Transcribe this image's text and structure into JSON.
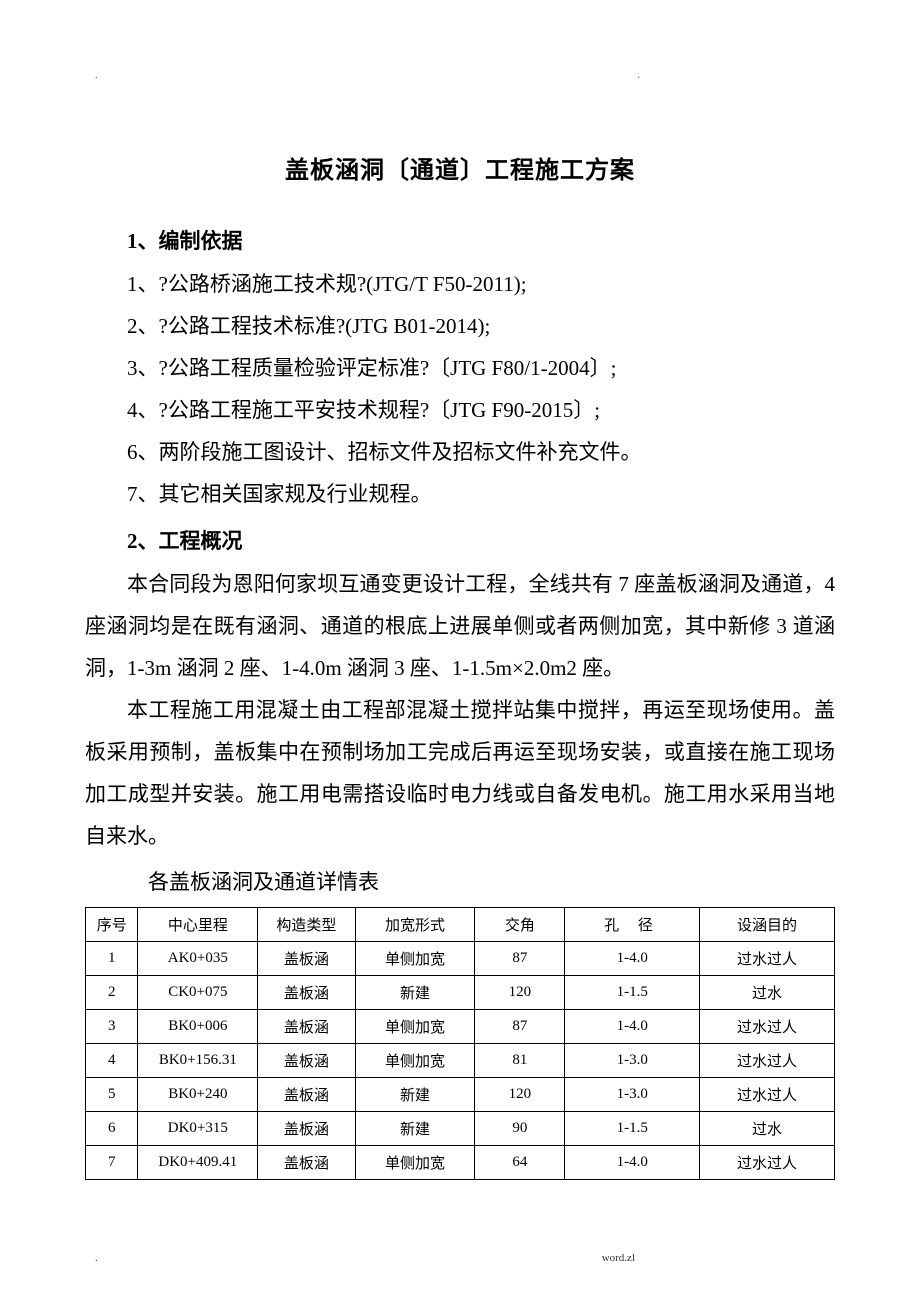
{
  "header": {
    "dot_left": ".",
    "dot_right": "."
  },
  "title": "盖板涵洞〔通道〕工程施工方案",
  "section1": {
    "heading": "1、编制依据",
    "items": [
      "1、?公路桥涵施工技术规?(JTG/T F50-2011);",
      "2、?公路工程技术标准?(JTG B01-2014);",
      "3、?公路工程质量检验评定标准?〔JTG F80/1-2004〕;",
      "4、?公路工程施工平安技术规程?〔JTG F90-2015〕;",
      "6、两阶段施工图设计、招标文件及招标文件补充文件。",
      "7、其它相关国家规及行业规程。"
    ]
  },
  "section2": {
    "heading": "2、工程概况",
    "para1": "本合同段为恩阳何家坝互通变更设计工程，全线共有 7 座盖板涵洞及通道，4 座涵洞均是在既有涵洞、通道的根底上进展单侧或者两侧加宽，其中新修 3 道涵洞，1-3m 涵洞 2 座、1-4.0m 涵洞 3 座、1-1.5m×2.0m2 座。",
    "para2": "本工程施工用混凝土由工程部混凝土搅拌站集中搅拌，再运至现场使用。盖板采用预制，盖板集中在预制场加工完成后再运至现场安装，或直接在施工现场加工成型并安装。施工用电需搭设临时电力线或自备发电机。施工用水采用当地自来水。"
  },
  "table": {
    "caption": "各盖板涵洞及通道详情表",
    "columns": [
      "序号",
      "中心里程",
      "构造类型",
      "加宽形式",
      "交角",
      "孔  径",
      "设涵目的"
    ],
    "rows": [
      [
        "1",
        "AK0+035",
        "盖板涵",
        "单侧加宽",
        "87",
        "1-4.0",
        "过水过人"
      ],
      [
        "2",
        "CK0+075",
        "盖板涵",
        "新建",
        "120",
        "1-1.5",
        "过水"
      ],
      [
        "3",
        "BK0+006",
        "盖板涵",
        "单侧加宽",
        "87",
        "1-4.0",
        "过水过人"
      ],
      [
        "4",
        "BK0+156.31",
        "盖板涵",
        "单侧加宽",
        "81",
        "1-3.0",
        "过水过人"
      ],
      [
        "5",
        "BK0+240",
        "盖板涵",
        "新建",
        "120",
        "1-3.0",
        "过水过人"
      ],
      [
        "6",
        "DK0+315",
        "盖板涵",
        "新建",
        "90",
        "1-1.5",
        "过水"
      ],
      [
        "7",
        "DK0+409.41",
        "盖板涵",
        "单侧加宽",
        "64",
        "1-4.0",
        "过水过人"
      ]
    ]
  },
  "footer": {
    "left": ".",
    "right": "word.zl"
  }
}
